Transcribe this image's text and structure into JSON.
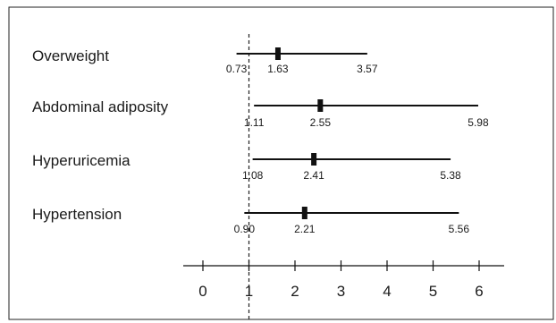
{
  "chart_data": {
    "type": "forest",
    "rows": [
      {
        "label": "Overweight",
        "estimate": 1.63,
        "lower": 0.73,
        "upper": 3.57,
        "estimate_label": "1.63",
        "lower_label": "0.73",
        "upper_label": "3.57"
      },
      {
        "label": "Abdominal adiposity",
        "estimate": 2.55,
        "lower": 1.11,
        "upper": 5.98,
        "estimate_label": "2.55",
        "lower_label": "1.11",
        "upper_label": "5.98"
      },
      {
        "label": "Hyperuricemia",
        "estimate": 2.41,
        "lower": 1.08,
        "upper": 5.38,
        "estimate_label": "2.41",
        "lower_label": "1.08",
        "upper_label": "5.38"
      },
      {
        "label": "Hypertension",
        "estimate": 2.21,
        "lower": 0.9,
        "upper": 5.56,
        "estimate_label": "2.21",
        "lower_label": "0.90",
        "upper_label": "5.56"
      }
    ],
    "xlim": [
      0,
      6
    ],
    "xticks": [
      "0",
      "1",
      "2",
      "3",
      "4",
      "5",
      "6"
    ],
    "reference_line": 1,
    "title": "",
    "xlabel": "",
    "ylabel": "",
    "grid": false,
    "legend": "none"
  }
}
